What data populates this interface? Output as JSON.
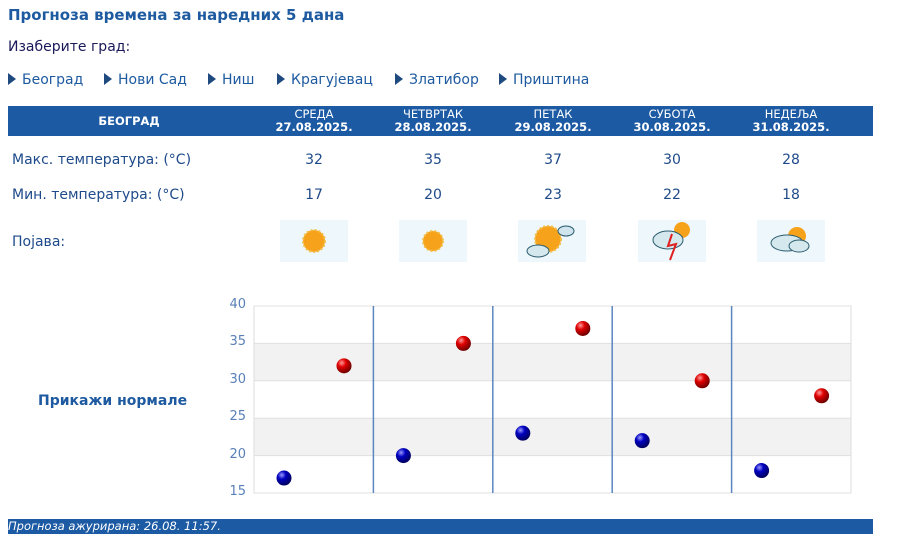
{
  "title": "Прогноза времена за наредних 5 дана",
  "choose_city": "Изаберите град:",
  "cities": [
    "Београд",
    "Нови Сад",
    "Ниш",
    "Крагујевац",
    "Златибор",
    "Приштина"
  ],
  "table": {
    "city": "БЕОГРАД",
    "days": [
      {
        "name": "СРЕДА",
        "date": "27.08.2025.",
        "max": "32",
        "min": "17",
        "icon": "sunny-icon"
      },
      {
        "name": "ЧЕТВРТАК",
        "date": "28.08.2025.",
        "max": "35",
        "min": "20",
        "icon": "sunny-icon"
      },
      {
        "name": "ПЕТАК",
        "date": "29.08.2025.",
        "max": "37",
        "min": "23",
        "icon": "mostly-sunny-icon"
      },
      {
        "name": "СУБОТА",
        "date": "30.08.2025.",
        "max": "30",
        "min": "22",
        "icon": "thunderstorm-icon"
      },
      {
        "name": "НЕДЕЉА",
        "date": "31.08.2025.",
        "max": "28",
        "min": "18",
        "icon": "partly-cloudy-icon"
      }
    ],
    "max_label": "Макс. температура: (°C)",
    "min_label": "Мин. температура: (°C)",
    "phenomenon_label": "Појава:"
  },
  "show_normals": "Прикажи нормале",
  "chart_data": {
    "type": "scatter",
    "categories": [
      "27.08.2025.",
      "28.08.2025.",
      "29.08.2025.",
      "30.08.2025.",
      "31.08.2025."
    ],
    "series": [
      {
        "values": [
          32,
          35,
          37,
          30,
          28
        ],
        "color": "#e00000"
      },
      {
        "values": [
          17,
          20,
          23,
          22,
          18
        ],
        "color": "#0000c0"
      }
    ],
    "ylim": [
      15,
      40
    ],
    "yticks": [
      "15",
      "20",
      "25",
      "30",
      "35",
      "40"
    ],
    "grid": true
  },
  "footer": "Прогноза ажурирана:  26.08. 11:57.",
  "colors": {
    "accent": "#1c5aa4"
  }
}
